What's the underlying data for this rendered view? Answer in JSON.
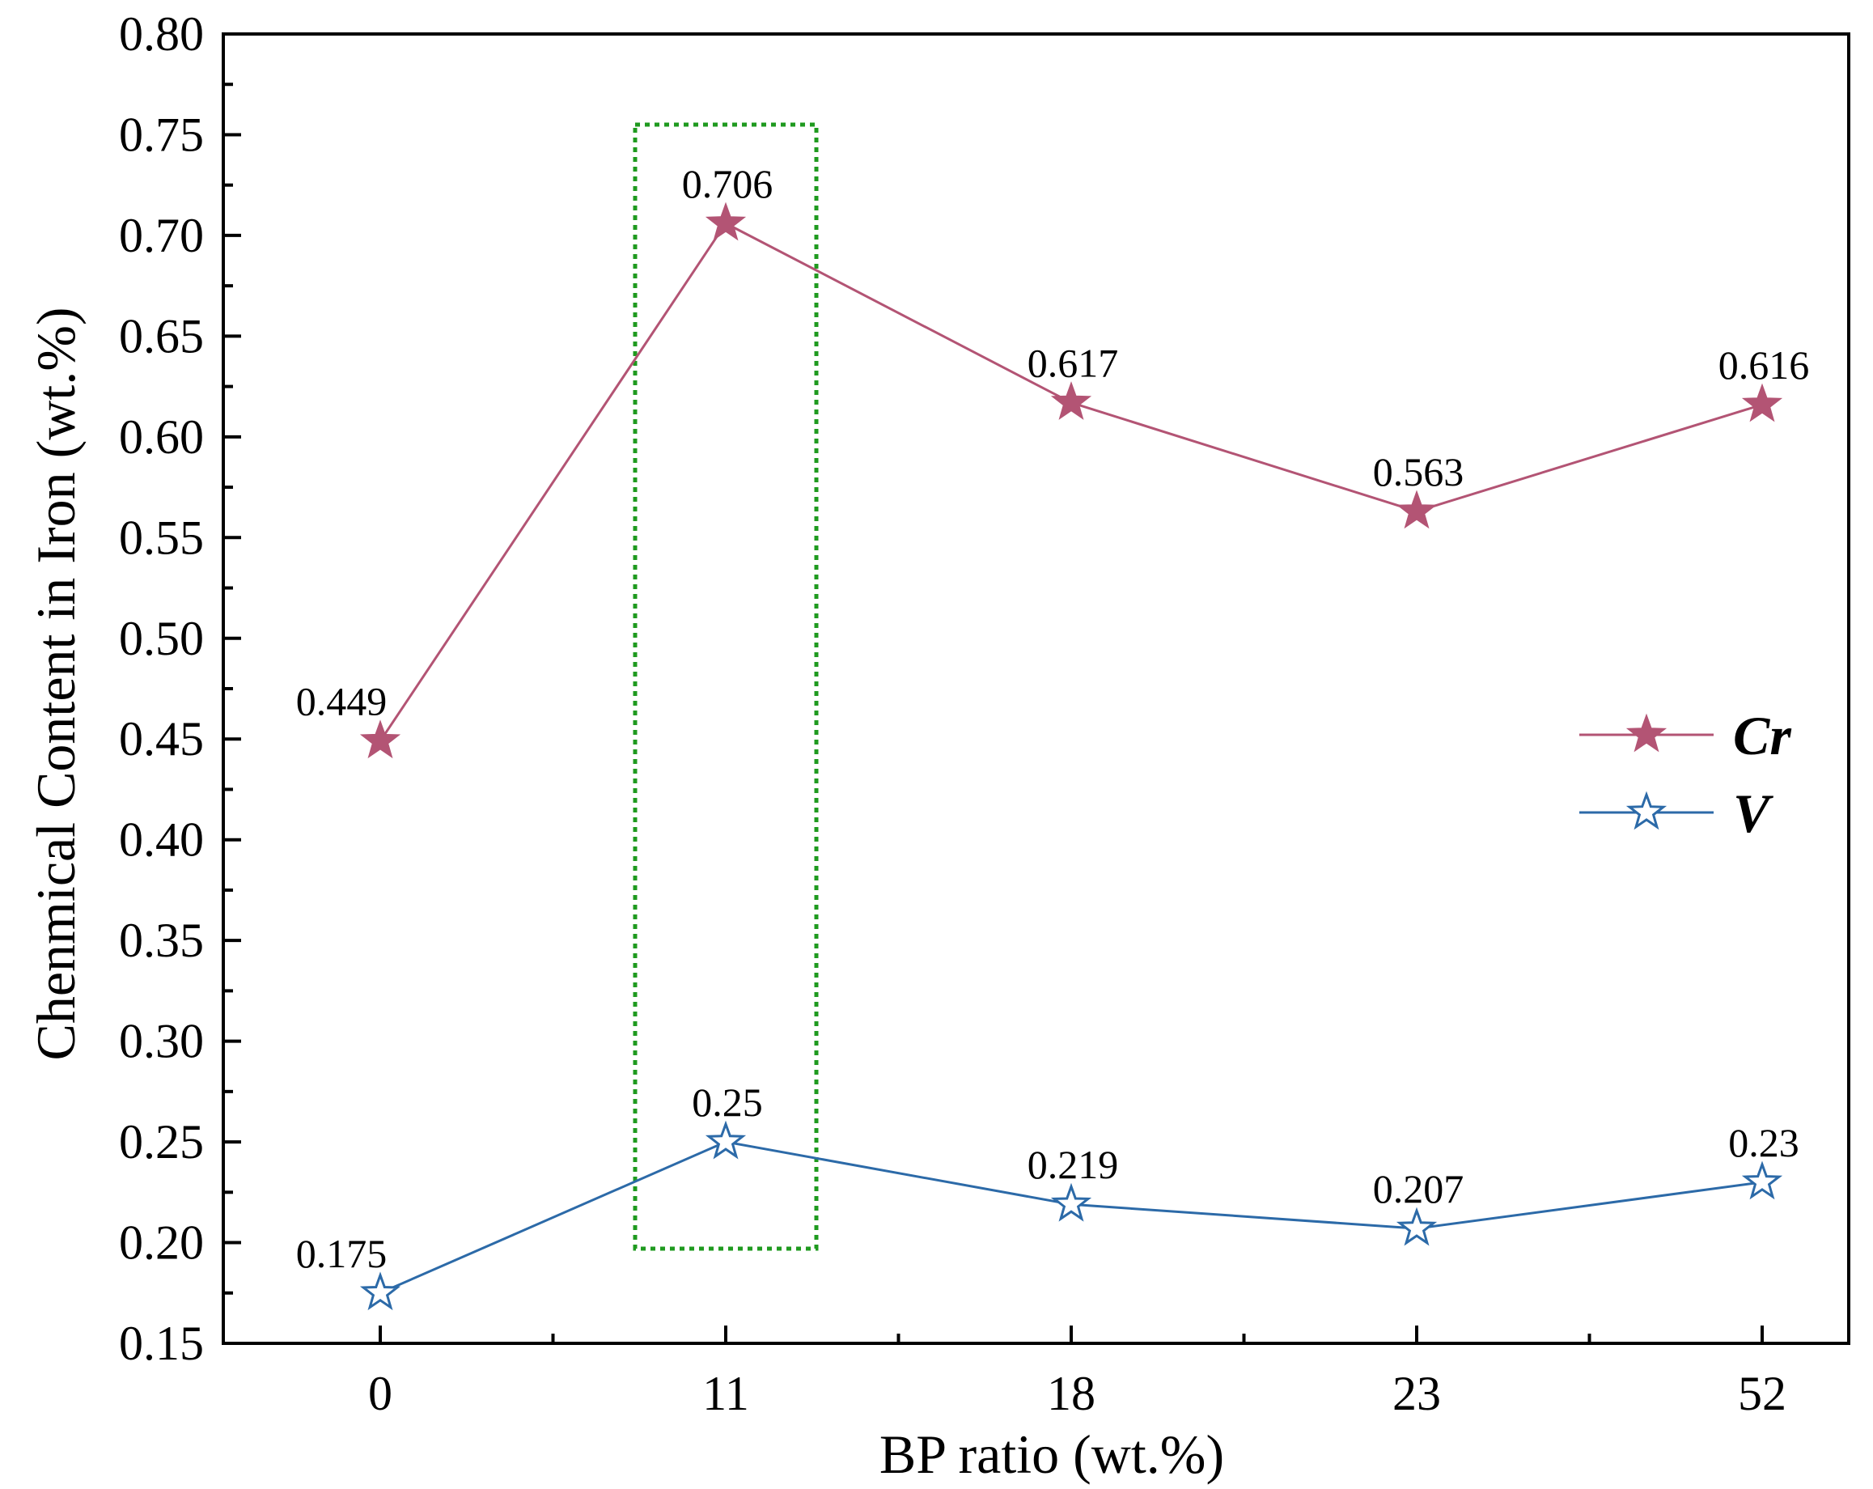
{
  "chart_data": {
    "type": "line",
    "title": "",
    "xlabel": "BP ratio (wt.%)",
    "ylabel": "Chenmical Content in Iron (wt.%)",
    "categories": [
      "0",
      "11",
      "18",
      "23",
      "52"
    ],
    "ylim": [
      0.15,
      0.8
    ],
    "y_ticks": [
      "0.15",
      "0.20",
      "0.25",
      "0.30",
      "0.35",
      "0.40",
      "0.45",
      "0.50",
      "0.55",
      "0.60",
      "0.65",
      "0.70",
      "0.75",
      "0.80"
    ],
    "series": [
      {
        "name": "Cr",
        "values": [
          0.449,
          0.706,
          0.617,
          0.563,
          0.616
        ],
        "labels": [
          "0.449",
          "0.706",
          "0.617",
          "0.563",
          "0.616"
        ],
        "color": "#b35474",
        "marker": "filled-star"
      },
      {
        "name": "V",
        "values": [
          0.175,
          0.25,
          0.219,
          0.207,
          0.23
        ],
        "labels": [
          "0.175",
          "0.25",
          "0.219",
          "0.207",
          "0.23"
        ],
        "color": "#2c6aa8",
        "marker": "open-star"
      }
    ],
    "highlight": {
      "category": "11",
      "y_range": [
        0.197,
        0.755
      ],
      "color": "#1f9a1f",
      "style": "dotted"
    },
    "legend_position": "right"
  }
}
